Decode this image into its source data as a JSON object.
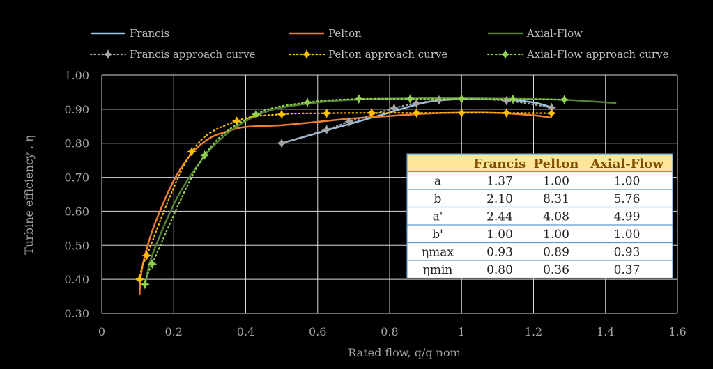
{
  "chart_data": {
    "type": "line",
    "title": "",
    "xlabel": "Rated flow, q/q nom",
    "ylabel": "Turbine efficiency , η",
    "xlim": [
      0,
      1.6
    ],
    "ylim": [
      0.3,
      1.0
    ],
    "x_ticks": [
      "0",
      "0.2",
      "0.4",
      "0.6",
      "0.8",
      "1",
      "1.2",
      "1.4",
      "1.6"
    ],
    "y_ticks": [
      "0.30",
      "0.40",
      "0.50",
      "0.60",
      "0.70",
      "0.80",
      "0.90",
      "1.00"
    ],
    "grid": true,
    "series": [
      {
        "name": "Francis",
        "style": "solid",
        "color": "#9dc3e6",
        "x": [
          0.5,
          0.6,
          0.7,
          0.8,
          0.9,
          1.0,
          1.1,
          1.2,
          1.25
        ],
        "y": [
          0.8,
          0.83,
          0.86,
          0.89,
          0.92,
          0.93,
          0.93,
          0.92,
          0.905
        ]
      },
      {
        "name": "Pelton",
        "style": "solid",
        "color": "#ed7d31",
        "x": [
          0.105,
          0.11,
          0.125,
          0.15,
          0.2,
          0.25,
          0.3,
          0.35,
          0.4,
          0.5,
          0.6,
          0.7,
          0.8,
          0.9,
          1.0,
          1.1,
          1.2,
          1.25
        ],
        "y": [
          0.355,
          0.42,
          0.49,
          0.57,
          0.69,
          0.77,
          0.815,
          0.835,
          0.848,
          0.853,
          0.863,
          0.873,
          0.88,
          0.887,
          0.89,
          0.889,
          0.882,
          0.875
        ]
      },
      {
        "name": "Axial-Flow",
        "style": "solid",
        "color": "#548235",
        "x": [
          0.12,
          0.14,
          0.2,
          0.25,
          0.3,
          0.35,
          0.4,
          0.45,
          0.5,
          0.6,
          0.7,
          0.8,
          0.9,
          1.0,
          1.1,
          1.2,
          1.3,
          1.43
        ],
        "y": [
          0.38,
          0.47,
          0.62,
          0.71,
          0.78,
          0.83,
          0.865,
          0.89,
          0.905,
          0.92,
          0.928,
          0.931,
          0.932,
          0.932,
          0.931,
          0.93,
          0.927,
          0.918
        ]
      },
      {
        "name": "Francis approach curve",
        "style": "dotted",
        "color": "#a6a6a6",
        "x": [
          0.5,
          0.625,
          0.6875,
          0.8125,
          0.875,
          0.9375,
          1.0,
          1.125,
          1.25
        ],
        "y": [
          0.8,
          0.84,
          0.863,
          0.903,
          0.917,
          0.927,
          0.93,
          0.925,
          0.905
        ]
      },
      {
        "name": "Pelton approach curve",
        "style": "dotted",
        "color": "#ffc000",
        "x": [
          0.105,
          0.125,
          0.25,
          0.375,
          0.5,
          0.625,
          0.75,
          0.875,
          1.0,
          1.125,
          1.25
        ],
        "y": [
          0.4,
          0.47,
          0.775,
          0.865,
          0.885,
          0.888,
          0.889,
          0.889,
          0.889,
          0.889,
          0.888
        ]
      },
      {
        "name": "Axial-Flow approach curve",
        "style": "dotted",
        "color": "#92d050",
        "x": [
          0.12,
          0.14,
          0.2857,
          0.4286,
          0.5714,
          0.7143,
          0.8571,
          1.0,
          1.1429,
          1.2857
        ],
        "y": [
          0.385,
          0.445,
          0.765,
          0.885,
          0.92,
          0.93,
          0.93,
          0.93,
          0.929,
          0.928
        ]
      }
    ]
  },
  "table": {
    "headers": [
      "",
      "Francis",
      "Pelton",
      "Axial-Flow"
    ],
    "rows": [
      [
        "a",
        "1.37",
        "1.00",
        "1.00"
      ],
      [
        "b",
        "2.10",
        "8.31",
        "5.76"
      ],
      [
        "a'",
        "2.44",
        "4.08",
        "4.99"
      ],
      [
        "b'",
        "1.00",
        "1.00",
        "1.00"
      ],
      [
        "ηmax",
        "0.93",
        "0.89",
        "0.93"
      ],
      [
        "ηmin",
        "0.80",
        "0.36",
        "0.37"
      ]
    ],
    "header_bg": "#ffe699",
    "body_bg": "#ffffff",
    "border": "#5b9bd5"
  }
}
